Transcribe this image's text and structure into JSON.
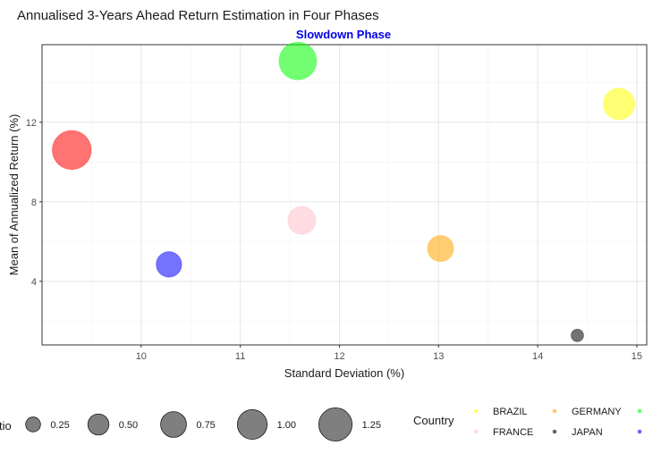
{
  "chart_data": {
    "type": "scatter",
    "title": "Annualised 3-Years Ahead Return Estimation in Four Phases",
    "subtitle": "Slowdown Phase",
    "subtitle_color": "#0000e6",
    "xlabel": "Standard Deviation (%)",
    "ylabel": "Mean of Annualized Return (%)",
    "xlim": [
      9.0,
      15.1
    ],
    "ylim": [
      0.8,
      15.9
    ],
    "xticks": [
      10,
      11,
      12,
      13,
      14,
      15
    ],
    "yticks": [
      4,
      8,
      12
    ],
    "grid": true,
    "legend_placement": "bottom",
    "points": [
      {
        "country": "BRAZIL",
        "x": 14.82,
        "y": 12.92,
        "size": 0.95,
        "color": "#ffff00"
      },
      {
        "country": "FRANCE",
        "x": 11.62,
        "y": 7.06,
        "size": 0.75,
        "color": "#ffc0cb"
      },
      {
        "country": "GERMANY",
        "x": 13.02,
        "y": 5.65,
        "size": 0.65,
        "color": "#ffa500"
      },
      {
        "country": "GERMANY",
        "x": 9.3,
        "y": 10.6,
        "size": 1.45,
        "color": "#ff0000"
      },
      {
        "country": "JAPAN",
        "x": 14.4,
        "y": 1.28,
        "size": 0.15,
        "color": "#000000"
      },
      {
        "country": "JAPAN",
        "x": 11.58,
        "y": 15.08,
        "size": 1.35,
        "color": "#00ff00"
      },
      {
        "country": "",
        "x": 10.28,
        "y": 4.85,
        "size": 0.62,
        "color": "#0000ff"
      }
    ],
    "size_legend": {
      "title_fragment": "tio",
      "values": [
        0.25,
        0.5,
        0.75,
        1.0,
        1.25
      ],
      "labels": [
        "0.25",
        "0.50",
        "0.75",
        "1.00",
        "1.25"
      ],
      "color": "#7f7f7f"
    },
    "color_legend": {
      "title": "Country",
      "entries": [
        {
          "label": "BRAZIL",
          "color": "#ffff00"
        },
        {
          "label": "GERMANY",
          "color": "#ffa500"
        },
        {
          "label": "",
          "color": "#00ff00"
        },
        {
          "label": "FRANCE",
          "color": "#ffc0cb"
        },
        {
          "label": "JAPAN",
          "color": "#000000"
        },
        {
          "label": "",
          "color": "#0000ff"
        }
      ]
    }
  }
}
